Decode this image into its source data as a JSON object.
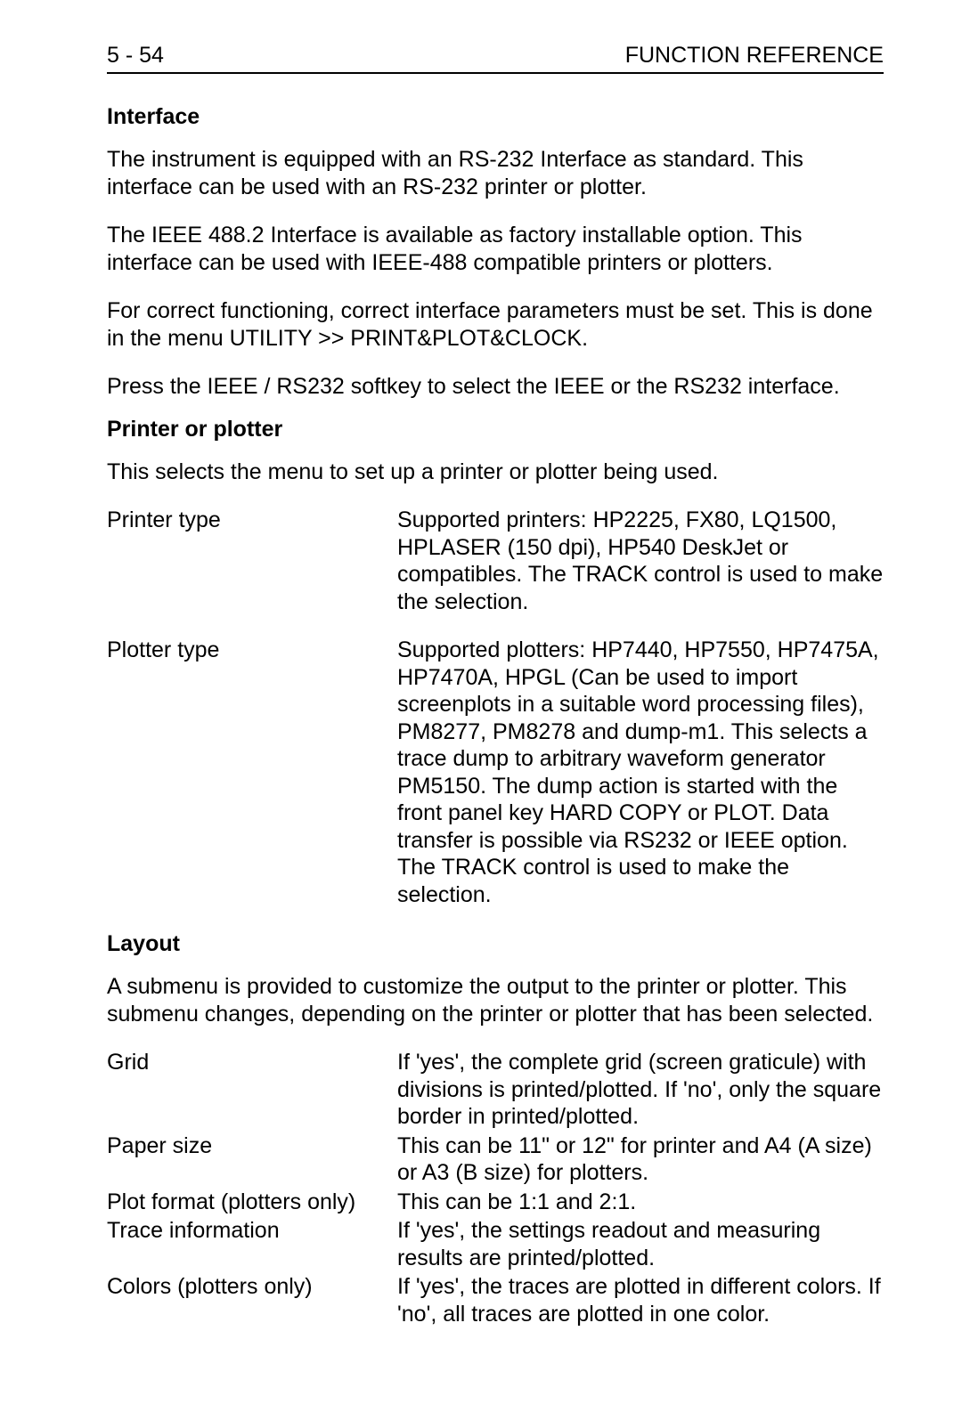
{
  "header": {
    "left": "5 - 54",
    "right": "FUNCTION REFERENCE"
  },
  "sections": {
    "interface": {
      "heading": "Interface",
      "p1": "The instrument is equipped with an RS-232 Interface as standard. This interface can be used with an RS-232 printer or plotter.",
      "p2": "The IEEE 488.2 Interface is available as factory installable option. This interface can be used with IEEE-488 compatible printers or plotters.",
      "p3": "For correct functioning, correct interface parameters must be set. This is done in the menu UTILITY >> PRINT&PLOT&CLOCK.",
      "p4": "Press the IEEE / RS232 softkey to select the IEEE or the RS232 interface."
    },
    "printer_plotter": {
      "heading": "Printer or plotter",
      "intro": "This selects the menu to set up a printer or plotter being used.",
      "defs": [
        {
          "label": "Printer type",
          "value": "Supported printers: HP2225, FX80, LQ1500, HPLASER (150 dpi), HP540 DeskJet or compatibles. The TRACK control is used to make the selection."
        },
        {
          "label": "Plotter type",
          "value": "Supported plotters: HP7440, HP7550, HP7475A, HP7470A, HPGL (Can be used to import screenplots in a suitable word processing files), PM8277, PM8278 and dump-m1. This selects a trace dump to arbitrary waveform generator PM5150. The dump action is started with the front panel key HARD COPY or PLOT. Data transfer is possible via RS232 or IEEE option. The TRACK control is used to make the selection."
        }
      ]
    },
    "layout": {
      "heading": "Layout",
      "intro": "A submenu is provided to customize the output to the printer or plotter. This submenu changes, depending on the printer or plotter that has been selected.",
      "defs": [
        {
          "label": "Grid",
          "value": "If 'yes', the complete grid (screen graticule) with divisions is printed/plotted. If 'no', only the square border in printed/plotted."
        },
        {
          "label": "Paper size",
          "value": "This can be 11\" or 12\" for printer and A4 (A size) or A3 (B size) for plotters."
        },
        {
          "label": "Plot format (plotters only)",
          "value": "This can be 1:1 and 2:1."
        },
        {
          "label": "Trace information",
          "value": "If 'yes', the settings readout and measuring results are printed/plotted."
        },
        {
          "label": "Colors (plotters only)",
          "value": "If 'yes', the traces are plotted in different colors. If 'no', all traces are plotted in one color."
        }
      ]
    }
  }
}
